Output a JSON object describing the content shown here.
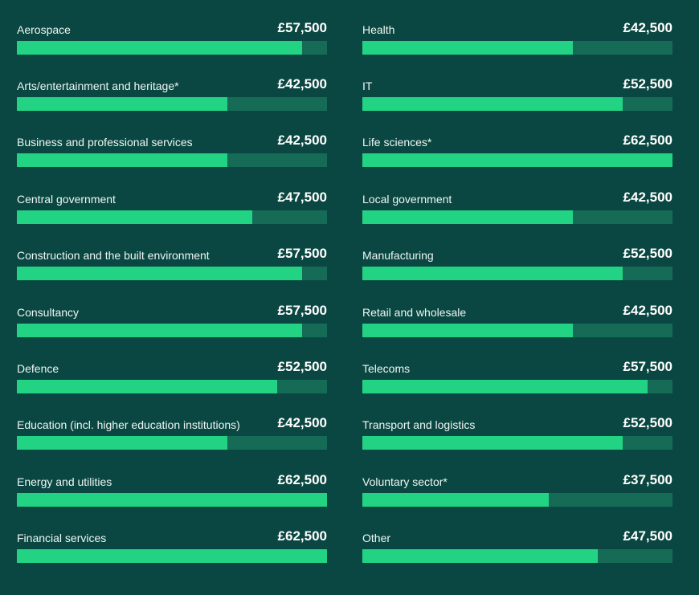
{
  "colors": {
    "background": "#0b4742",
    "bar_fill": "#22d384",
    "bar_track": "#166b57"
  },
  "chart_data": {
    "type": "bar",
    "orientation": "horizontal",
    "xlim": [
      0,
      62500
    ],
    "grid": false,
    "columns": [
      {
        "categories": [
          "Aerospace",
          "Arts/entertainment and heritage*",
          "Business and professional services",
          "Central government",
          "Construction and the built environment",
          "Consultancy",
          "Defence",
          "Education (incl. higher education institutions)",
          "Energy and utilities",
          "Financial services"
        ],
        "values": [
          57500,
          42500,
          42500,
          47500,
          57500,
          57500,
          52500,
          42500,
          62500,
          62500
        ],
        "value_labels": [
          "£57,500",
          "£42,500",
          "£42,500",
          "£47,500",
          "£57,500",
          "£57,500",
          "£52,500",
          "£42,500",
          "£62,500",
          "£62,500"
        ]
      },
      {
        "categories": [
          "Health",
          "IT",
          "Life sciences*",
          "Local government",
          "Manufacturing",
          "Retail and wholesale",
          "Telecoms",
          "Transport and logistics",
          "Voluntary sector*",
          "Other"
        ],
        "values": [
          42500,
          52500,
          62500,
          42500,
          52500,
          42500,
          57500,
          52500,
          37500,
          47500
        ],
        "value_labels": [
          "£42,500",
          "£52,500",
          "£62,500",
          "£42,500",
          "£52,500",
          "£42,500",
          "£57,500",
          "£52,500",
          "£37,500",
          "£47,500"
        ]
      }
    ]
  }
}
